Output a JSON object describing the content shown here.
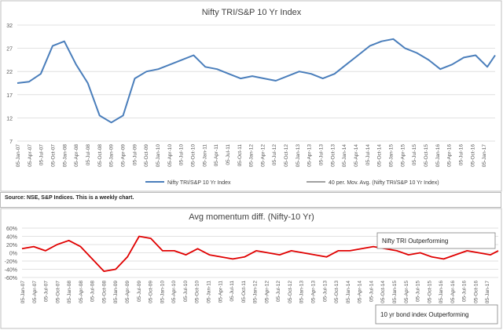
{
  "source_note": "Source: NSE, S&P Indices. This is a weekly chart.",
  "chart_data": [
    {
      "type": "line",
      "title": "Nifty TRI/S&P 10 Yr Index",
      "xlabel": "",
      "ylabel": "",
      "ylim": [
        7,
        32
      ],
      "yticks": [
        7,
        12,
        17,
        22,
        27,
        32
      ],
      "grid": true,
      "legend": "bottom",
      "x_tick_labels": [
        "05-Jan-07",
        "05-Apr-07",
        "05-Jul-07",
        "05-Oct-07",
        "05-Jan-08",
        "05-Apr-08",
        "05-Jul-08",
        "05-Oct-08",
        "05-Jan-09",
        "05-Apr-09",
        "05-Jul-09",
        "05-Oct-09",
        "05-Jan-10",
        "05-Apr-10",
        "05-Jul-10",
        "05-Oct-10",
        "05-Jan-11",
        "05-Apr-11",
        "05-Jul-11",
        "05-Oct-11",
        "05-Jan-12",
        "05-Apr-12",
        "05-Jul-12",
        "05-Oct-12",
        "05-Jan-13",
        "05-Apr-13",
        "05-Jul-13",
        "05-Oct-13",
        "05-Jan-14",
        "05-Apr-14",
        "05-Jul-14",
        "05-Oct-14",
        "05-Jan-15",
        "05-Apr-15",
        "05-Jul-15",
        "05-Oct-15",
        "05-Jan-16",
        "05-Apr-16",
        "05-Jul-16",
        "05-Oct-16",
        "05-Jan-17"
      ],
      "x": [
        "2007-01",
        "2007-04",
        "2007-07",
        "2007-10",
        "2008-01",
        "2008-04",
        "2008-07",
        "2008-10",
        "2009-01",
        "2009-04",
        "2009-07",
        "2009-10",
        "2010-01",
        "2010-04",
        "2010-07",
        "2010-10",
        "2011-01",
        "2011-04",
        "2011-07",
        "2011-10",
        "2012-01",
        "2012-04",
        "2012-07",
        "2012-10",
        "2013-01",
        "2013-04",
        "2013-07",
        "2013-10",
        "2014-01",
        "2014-04",
        "2014-07",
        "2014-10",
        "2015-01",
        "2015-04",
        "2015-07",
        "2015-10",
        "2016-01",
        "2016-04",
        "2016-07",
        "2016-10",
        "2017-01",
        "2017-03"
      ],
      "series": [
        {
          "name": "Nifty TRI/S&P 10 Yr Index",
          "color": "#4a7ebb",
          "values": [
            19.5,
            19.8,
            21.5,
            27.5,
            28.5,
            23.5,
            19.5,
            12.5,
            11.0,
            12.5,
            20.5,
            22.0,
            22.5,
            23.5,
            24.5,
            25.5,
            23.0,
            22.5,
            21.5,
            20.5,
            21.0,
            20.5,
            20.0,
            21.0,
            22.0,
            21.5,
            20.5,
            21.5,
            23.5,
            25.5,
            27.5,
            28.5,
            29.0,
            27.0,
            26.0,
            24.5,
            22.5,
            23.5,
            25.0,
            25.5,
            23.0,
            25.5
          ]
        },
        {
          "name": "40 per. Mov. Avg. (Nifty TRI/S&P 10 Yr Index)",
          "color": "#000000",
          "values": [
            null,
            null,
            null,
            null,
            null,
            null,
            null,
            null,
            null,
            null,
            null,
            null,
            null,
            null,
            null,
            null,
            null,
            null,
            null,
            null,
            null,
            null,
            null,
            null,
            null,
            null,
            null,
            null,
            null,
            null,
            null,
            null,
            null,
            null,
            null,
            null,
            null,
            null,
            null,
            null,
            null,
            null
          ]
        }
      ]
    },
    {
      "type": "line",
      "title": "Avg momentum diff. (Nifty-10 Yr)",
      "xlabel": "",
      "ylabel": "",
      "ylim": [
        -60,
        60
      ],
      "yticks": [
        -60,
        -40,
        -20,
        0,
        20,
        40,
        60
      ],
      "ytick_labels": [
        "-60%",
        "-40%",
        "-20%",
        "0%",
        "20%",
        "40%",
        "60%"
      ],
      "grid": true,
      "legend": "none",
      "annotations": [
        "Nifty TRI Outperforming",
        "10 yr bond index Outperforming"
      ],
      "x_tick_labels": [
        "05-Jan-07",
        "05-Apr-07",
        "05-Jul-07",
        "05-Oct-07",
        "05-Jan-08",
        "05-Apr-08",
        "05-Jul-08",
        "05-Oct-08",
        "05-Jan-09",
        "05-Apr-09",
        "05-Jul-09",
        "05-Oct-09",
        "05-Jan-10",
        "05-Apr-10",
        "05-Jul-10",
        "05-Oct-10",
        "05-Jan-11",
        "05-Apr-11",
        "05-Jul-11",
        "05-Oct-11",
        "05-Jan-12",
        "05-Apr-12",
        "05-Jul-12",
        "05-Oct-12",
        "05-Jan-13",
        "05-Apr-13",
        "05-Jul-13",
        "05-Oct-13",
        "05-Jan-14",
        "05-Apr-14",
        "05-Jul-14",
        "05-Oct-14",
        "05-Jan-15",
        "05-Apr-15",
        "05-Jul-15",
        "05-Oct-15",
        "05-Jan-16",
        "05-Apr-16",
        "05-Jul-16",
        "05-Oct-16",
        "05-Jan-17"
      ],
      "x": [
        "2007-01",
        "2007-04",
        "2007-07",
        "2007-10",
        "2008-01",
        "2008-04",
        "2008-07",
        "2008-10",
        "2009-01",
        "2009-04",
        "2009-07",
        "2009-10",
        "2010-01",
        "2010-04",
        "2010-07",
        "2010-10",
        "2011-01",
        "2011-04",
        "2011-07",
        "2011-10",
        "2012-01",
        "2012-04",
        "2012-07",
        "2012-10",
        "2013-01",
        "2013-04",
        "2013-07",
        "2013-10",
        "2014-01",
        "2014-04",
        "2014-07",
        "2014-10",
        "2015-01",
        "2015-04",
        "2015-07",
        "2015-10",
        "2016-01",
        "2016-04",
        "2016-07",
        "2016-10",
        "2017-01",
        "2017-03"
      ],
      "series": [
        {
          "color": "#e00000",
          "values": [
            10,
            15,
            5,
            20,
            30,
            15,
            -15,
            -45,
            -40,
            -10,
            40,
            35,
            5,
            5,
            -5,
            10,
            -5,
            -10,
            -15,
            -10,
            5,
            0,
            -5,
            5,
            0,
            -5,
            -10,
            5,
            5,
            10,
            15,
            10,
            5,
            -5,
            0,
            -10,
            -15,
            -5,
            5,
            0,
            -5,
            5
          ]
        }
      ]
    }
  ]
}
